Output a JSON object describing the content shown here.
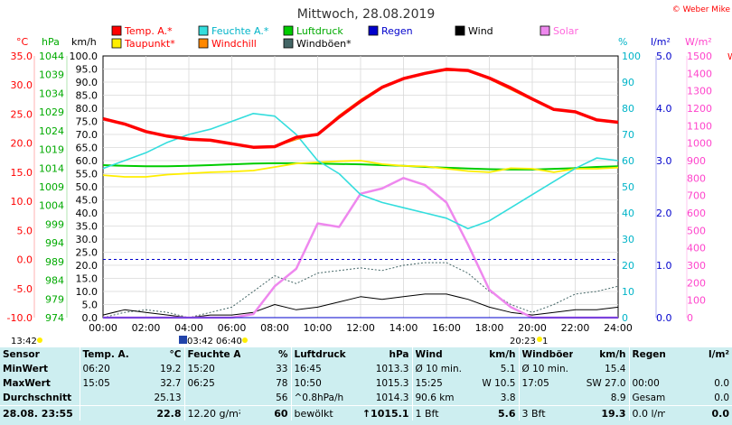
{
  "page": {
    "title": "Mittwoch, 28.08.2019",
    "credit": "© Weber Mike",
    "credit_edge": "W"
  },
  "axes": {
    "celsius": {
      "unit": "°C",
      "color": "#ff0000",
      "ticks": [
        "35.0",
        "30.0",
        "25.0",
        "20.0",
        "15.0",
        "10.0",
        "5.0",
        "0.0",
        "-5.0",
        "-10.0"
      ],
      "range": [
        -10,
        35
      ]
    },
    "hpa": {
      "unit": "hPa",
      "color": "#00aa00",
      "ticks": [
        "1044",
        "1039",
        "1034",
        "1029",
        "1024",
        "1019",
        "1014",
        "1009",
        "1004",
        "999",
        "994",
        "989",
        "984",
        "979",
        "974"
      ],
      "range": [
        974,
        1044
      ]
    },
    "kmh": {
      "unit": "km/h",
      "color": "#000000",
      "ticks": [
        "100.0",
        "95.0",
        "90.0",
        "85.0",
        "80.0",
        "75.0",
        "70.0",
        "65.0",
        "60.0",
        "55.0",
        "50.0",
        "45.0",
        "40.0",
        "35.0",
        "30.0",
        "25.0",
        "20.0",
        "15.0",
        "10.0",
        "5.0",
        "0.0"
      ],
      "range": [
        0,
        100
      ]
    },
    "percent": {
      "unit": "%",
      "color": "#00b4c8",
      "ticks": [
        "100",
        "90",
        "80",
        "70",
        "60",
        "50",
        "40",
        "30",
        "20",
        "10",
        "0"
      ],
      "range": [
        0,
        100
      ]
    },
    "lm2": {
      "unit": "l/m²",
      "color": "#0000cc",
      "ticks": [
        "5.0",
        "4.0",
        "3.0",
        "2.0",
        "1.0",
        "0.0"
      ],
      "range": [
        0,
        5
      ]
    },
    "wm2": {
      "unit": "W/m²",
      "color": "#ff44cc",
      "ticks": [
        "1500",
        "1400",
        "1300",
        "1200",
        "1100",
        "1000",
        "900",
        "800",
        "700",
        "600",
        "500",
        "400",
        "300",
        "200",
        "100",
        "0"
      ],
      "range": [
        0,
        1500
      ]
    },
    "time": {
      "ticks": [
        "00:00",
        "02:00",
        "04:00",
        "06:00",
        "08:00",
        "10:00",
        "12:00",
        "14:00",
        "16:00",
        "18:00",
        "20:00",
        "22:00",
        "24:00"
      ]
    }
  },
  "legend": [
    {
      "label": "Temp. A.*",
      "color": "#ff0000"
    },
    {
      "label": "Feuchte A.*",
      "color": "#33dddd"
    },
    {
      "label": "Luftdruck",
      "color": "#00cc00"
    },
    {
      "label": "Regen",
      "color": "#0000cc"
    },
    {
      "label": "Wind",
      "color": "#000000"
    },
    {
      "label": "Solar",
      "color": "#ee88ee"
    },
    {
      "label": "Taupunkt*",
      "color": "#ffee00"
    },
    {
      "label": "Windchill",
      "color": "#ff8800"
    },
    {
      "label": "Windböen*",
      "color": "#446666"
    }
  ],
  "sun": {
    "rise_label": "06:40",
    "set_label": "20:23",
    "left_time": "13:42",
    "moon_label": "03:42",
    "moon_extra": "1"
  },
  "chart_data": {
    "type": "line",
    "x_hours": [
      0,
      1,
      2,
      3,
      4,
      5,
      6,
      7,
      8,
      9,
      10,
      11,
      12,
      13,
      14,
      15,
      16,
      17,
      18,
      19,
      20,
      21,
      22,
      23,
      24
    ],
    "series": [
      {
        "name": "Temp. A.*",
        "axis": "celsius",
        "values": [
          24.2,
          23.3,
          22.0,
          21.2,
          20.7,
          20.5,
          19.9,
          19.3,
          19.4,
          21.0,
          21.5,
          24.5,
          27.2,
          29.6,
          31.1,
          32.0,
          32.7,
          32.5,
          31.2,
          29.5,
          27.6,
          25.8,
          25.4,
          24.0,
          23.6
        ]
      },
      {
        "name": "Windchill",
        "axis": "celsius",
        "values": [
          24.2,
          23.3,
          22.0,
          21.2,
          20.7,
          20.5,
          19.9,
          19.3,
          19.4,
          20.6,
          21.6,
          24.8,
          27.5,
          29.8,
          31.2,
          32.1,
          32.5,
          32.4,
          31.0,
          29.2,
          27.4,
          25.9,
          25.5,
          24.1,
          23.6
        ]
      },
      {
        "name": "Feuchte A.*",
        "axis": "percent",
        "values": [
          57,
          60,
          63,
          67,
          70,
          72,
          75,
          78,
          77,
          70,
          60,
          55,
          47,
          44,
          42,
          40,
          38,
          34,
          37,
          42,
          47,
          52,
          57,
          61,
          60
        ]
      },
      {
        "name": "Taupunkt*",
        "axis": "celsius",
        "values": [
          14.5,
          14.2,
          14.2,
          14.6,
          14.8,
          15.0,
          15.1,
          15.3,
          15.9,
          16.5,
          16.7,
          16.9,
          17.0,
          16.4,
          16.1,
          16.0,
          15.6,
          15.2,
          15.0,
          15.7,
          15.6,
          15.0,
          15.6,
          15.6,
          15.8
        ]
      },
      {
        "name": "Luftdruck",
        "axis": "hpa",
        "values": [
          1014.8,
          1014.6,
          1014.5,
          1014.5,
          1014.6,
          1014.8,
          1015.0,
          1015.2,
          1015.3,
          1015.3,
          1015.2,
          1015.1,
          1015.0,
          1014.8,
          1014.6,
          1014.3,
          1014.1,
          1013.9,
          1013.7,
          1013.6,
          1013.6,
          1013.8,
          1014.0,
          1014.3,
          1014.5
        ]
      },
      {
        "name": "Solar",
        "axis": "wm2",
        "values": [
          0,
          0,
          0,
          0,
          0,
          0,
          0,
          20,
          180,
          280,
          540,
          520,
          710,
          740,
          800,
          760,
          660,
          420,
          160,
          60,
          0,
          0,
          0,
          0,
          0
        ]
      },
      {
        "name": "Wind",
        "axis": "kmh",
        "values": [
          1,
          3,
          2,
          1,
          0,
          1,
          1,
          2,
          5,
          3,
          4,
          6,
          8,
          7,
          8,
          9,
          9,
          7,
          4,
          2,
          1,
          2,
          3,
          3,
          4
        ]
      },
      {
        "name": "Windböen*",
        "axis": "kmh",
        "values": [
          0,
          2,
          3,
          2,
          0,
          2,
          4,
          10,
          16,
          13,
          17,
          18,
          19,
          18,
          20,
          21,
          21,
          17,
          10,
          5,
          2,
          5,
          9,
          10,
          12
        ]
      },
      {
        "name": "Regen",
        "axis": "lm2",
        "values": [
          0,
          0,
          0,
          0,
          0,
          0,
          0,
          0,
          0,
          0,
          0,
          0,
          0,
          0,
          0,
          0,
          0,
          0,
          0,
          0,
          0,
          0,
          0,
          0,
          0
        ]
      }
    ],
    "reference_line": {
      "axis": "celsius",
      "value": 0
    }
  },
  "stats": {
    "columns": [
      {
        "head": "Sensor",
        "unit": "",
        "rows": [
          [
            "MinWert",
            ""
          ],
          [
            "MaxWert",
            ""
          ],
          [
            "Durchschnitt",
            ""
          ]
        ],
        "last": "28.08. 23:55"
      },
      {
        "head": "Temp. A.",
        "unit": "°C",
        "rows": [
          [
            "06:20",
            "19.2"
          ],
          [
            "15:05",
            "32.7"
          ],
          [
            "",
            "25.13"
          ]
        ],
        "last_l": "",
        "last_r": "22.8"
      },
      {
        "head": "Feuchte A.",
        "unit": "%",
        "rows": [
          [
            "15:20",
            "33"
          ],
          [
            "06:25",
            "78"
          ],
          [
            "",
            "56"
          ]
        ],
        "last_l": "12.20 g/m²",
        "last_r": "60"
      },
      {
        "head": "Luftdruck",
        "unit": "hPa",
        "rows": [
          [
            "16:45",
            "1013.3"
          ],
          [
            "10:50",
            "1015.3"
          ],
          [
            "^0.8hPa/h",
            "1014.3"
          ]
        ],
        "last_l": "bewölkt",
        "last_r": "↑1015.1"
      },
      {
        "head": "Wind",
        "unit": "km/h",
        "rows": [
          [
            "Ø 10 min.",
            "5.1"
          ],
          [
            "15:25",
            "W 10.5"
          ],
          [
            "90.6 km",
            "3.8"
          ]
        ],
        "last_l": "1 Bft",
        "last_r": "5.6"
      },
      {
        "head": "Windböen",
        "unit": "km/h",
        "rows": [
          [
            "Ø 10 min.",
            "15.4"
          ],
          [
            "17:05",
            "SW 27.0"
          ],
          [
            "",
            "8.9"
          ]
        ],
        "last_l": "3 Bft",
        "last_r": "19.3"
      },
      {
        "head": "Regen",
        "unit": "l/m²",
        "rows": [
          [
            "",
            ""
          ],
          [
            "00:00",
            "0.0"
          ],
          [
            "Gesamt:",
            "0.0"
          ]
        ],
        "last_l": "0.0 l/m²",
        "last_r": "0.0"
      }
    ]
  }
}
